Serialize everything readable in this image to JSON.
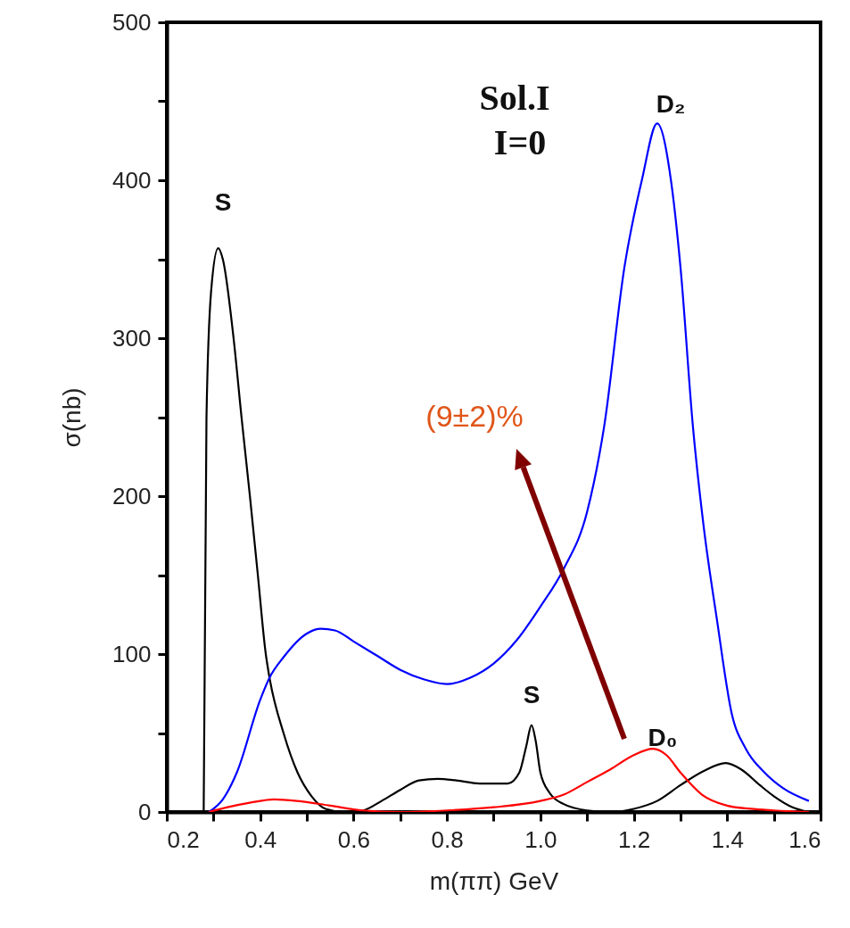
{
  "chart_data": {
    "type": "line",
    "xlabel": "m(ππ) GeV",
    "ylabel": "σ(nb)",
    "xlim": [
      0.2,
      1.6
    ],
    "ylim": [
      0,
      500
    ],
    "xticks": [
      0.2,
      {
        "value": 0.3,
        "label": null
      },
      0.4,
      {
        "value": 0.5,
        "label": null
      },
      0.6,
      {
        "value": 0.7,
        "label": null
      },
      0.8,
      {
        "value": 0.9,
        "label": null
      },
      {
        "value": 1,
        "label": "1.0"
      },
      {
        "value": 1.1,
        "label": null
      },
      1.2,
      {
        "value": 1.3,
        "label": null
      },
      1.4,
      {
        "value": 1.5,
        "label": null
      },
      1.6
    ],
    "yticks": [
      0,
      {
        "value": 50,
        "label": null
      },
      100,
      {
        "value": 150,
        "label": null
      },
      200,
      {
        "value": 250,
        "label": null
      },
      300,
      {
        "value": 350,
        "label": null
      },
      400,
      {
        "value": 450,
        "label": null
      },
      500
    ],
    "series": [
      {
        "color": "#000000",
        "x": [
          0.279,
          0.285,
          0.295,
          0.31,
          0.32,
          0.343,
          0.36,
          0.378,
          0.395,
          0.412,
          0.42,
          0.45,
          0.48,
          0.51,
          0.54,
          0.58,
          0.62,
          0.66,
          0.7,
          0.74,
          0.78,
          0.82,
          0.87,
          0.93,
          0.955,
          0.97,
          0.981,
          0.99,
          1.0,
          1.02,
          1.05,
          1.1,
          1.15,
          1.2,
          1.25,
          1.3,
          1.35,
          1.397,
          1.43,
          1.47,
          1.5,
          1.54,
          1.575
        ],
        "values": [
          0,
          250,
          330,
          357,
          350,
          300,
          250,
          200,
          150,
          100,
          85,
          50,
          25,
          10,
          2,
          0,
          1,
          7,
          14,
          20,
          21,
          20,
          18,
          18,
          25,
          42,
          55,
          45,
          25,
          12,
          5,
          1,
          0,
          2,
          7,
          17,
          26,
          31,
          27,
          17,
          10,
          3,
          0
        ]
      },
      {
        "color": "#0000ff",
        "x": [
          0.29,
          0.32,
          0.35,
          0.4,
          0.42,
          0.45,
          0.5,
          0.53,
          0.56,
          0.6,
          0.65,
          0.7,
          0.75,
          0.8,
          0.85,
          0.9,
          0.95,
          1.0,
          1.05,
          1.1,
          1.136,
          1.18,
          1.218,
          1.25,
          1.281,
          1.3,
          1.327,
          1.35,
          1.378,
          1.41,
          1.44,
          1.48,
          1.52,
          1.575
        ],
        "values": [
          0,
          8,
          25,
          71,
          85,
          98,
          113,
          116,
          115,
          108,
          99,
          90,
          84,
          81,
          85,
          94,
          109,
          130,
          154,
          190,
          243,
          345,
          401,
          436,
          397,
          345,
          243,
          180,
          122,
          62,
          40,
          25,
          15,
          7
        ]
      },
      {
        "color": "#ff0000",
        "x": [
          0.29,
          0.33,
          0.38,
          0.43,
          0.48,
          0.55,
          0.62,
          0.7,
          0.8,
          0.9,
          1.0,
          1.05,
          1.1,
          1.15,
          1.2,
          1.241,
          1.27,
          1.3,
          1.346,
          1.4,
          1.45,
          1.5,
          1.575
        ],
        "values": [
          0,
          3,
          6,
          8,
          7,
          4,
          1,
          0,
          1,
          3,
          7,
          11,
          19,
          27,
          36,
          40,
          36,
          25,
          11,
          4,
          2,
          1,
          0
        ]
      }
    ],
    "annotations": [
      "Sol.I",
      "I=0",
      "(9±2)%",
      "S",
      "D₂",
      "S",
      "D₀"
    ]
  }
}
